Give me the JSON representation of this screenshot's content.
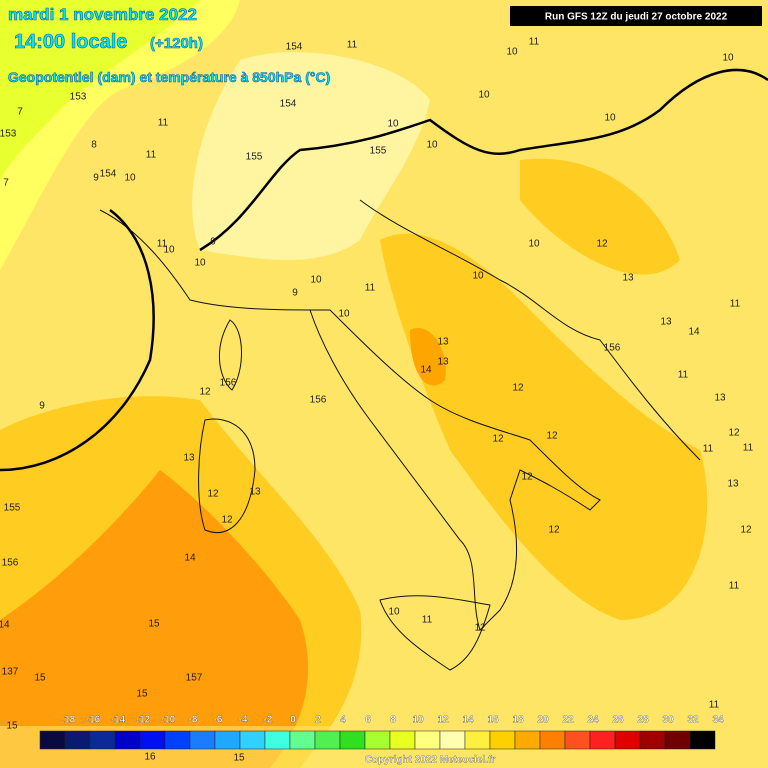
{
  "header": {
    "date": "mardi 1 novembre 2022",
    "time": "14:00 locale",
    "lead": "(+120h)",
    "subtitle": "Geopotentiel (dam) et température à 850hPa (°C)",
    "run": "Run GFS 12Z du jeudi 27 octobre 2022"
  },
  "map_labels": [
    "154",
    "11",
    "10",
    "11",
    "10",
    "153",
    "7",
    "154",
    "10",
    "10",
    "8",
    "11",
    "10",
    "11",
    "153",
    "10",
    "155",
    "155",
    "7",
    "9",
    "154",
    "10",
    "11",
    "10",
    "9",
    "10",
    "10",
    "12",
    "10",
    "13",
    "11",
    "10",
    "9",
    "10",
    "11",
    "13",
    "14",
    "156",
    "13",
    "13",
    "14",
    "11",
    "156",
    "12",
    "156",
    "12",
    "9",
    "13",
    "12",
    "13",
    "12",
    "12",
    "11",
    "11",
    "13",
    "12",
    "12",
    "13",
    "155",
    "12",
    "12",
    "12",
    "14",
    "156",
    "11",
    "10",
    "11",
    "15",
    "14",
    "12",
    "157",
    "15",
    "137",
    "15",
    "11",
    "15",
    "16",
    "15"
  ],
  "colorbar": {
    "labels": [
      "-18",
      "-16",
      "-14",
      "-12",
      "-10",
      "-8",
      "-6",
      "-4",
      "-2",
      "0",
      "2",
      "4",
      "6",
      "8",
      "10",
      "12",
      "14",
      "16",
      "18",
      "20",
      "22",
      "24",
      "26",
      "28",
      "30",
      "32",
      "34"
    ],
    "colors": [
      "#0a0a40",
      "#0a1a70",
      "#0a2a9a",
      "#0000c8",
      "#0010f0",
      "#0040ff",
      "#1a7cff",
      "#1ea8ff",
      "#30d0ff",
      "#40ffe0",
      "#60ff90",
      "#50f050",
      "#30e020",
      "#a8ff30",
      "#e8ff20",
      "#ffff80",
      "#ffffb0",
      "#fff040",
      "#ffd000",
      "#ffaa00",
      "#ff8000",
      "#ff5020",
      "#ff2020",
      "#e00000",
      "#a00000",
      "#700000",
      "#000000"
    ]
  },
  "copyright": "Copyright 2022 Meteociel.fr"
}
